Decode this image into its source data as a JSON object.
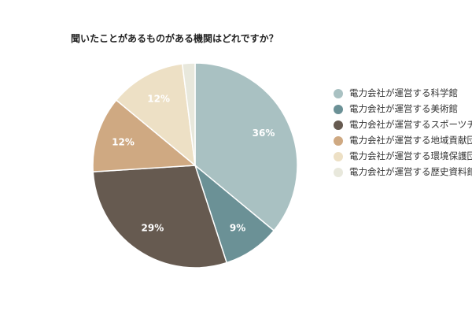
{
  "chart_data": {
    "type": "pie",
    "title": "聞いたことがあるものがある機関はどれですか？",
    "categories": [
      "電力会社が運営する科学館",
      "電力会社が運営する美術館",
      "電力会社が運営するスポーツチーム",
      "電力会社が運営する地域貢献団体",
      "電力会社が運営する環境保護団体",
      "電力会社が運営する歴史資料館"
    ],
    "values": [
      36,
      9,
      29,
      12,
      12,
      2
    ],
    "value_labels": [
      "36%",
      "9%",
      "29%",
      "12%",
      "12%",
      ""
    ],
    "colors": [
      "#a9c1c2",
      "#6b9196",
      "#665a50",
      "#cfa982",
      "#ede0c5",
      "#e8e8dc"
    ],
    "legend_position": "right"
  }
}
